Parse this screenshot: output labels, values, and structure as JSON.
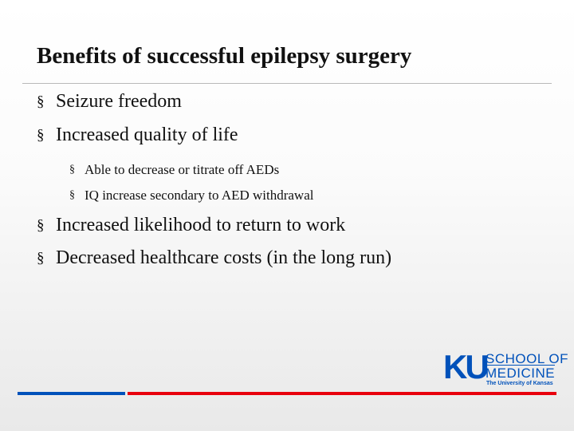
{
  "header": {
    "title": "Benefits of successful epilepsy surgery"
  },
  "bullet": "§",
  "items": [
    {
      "level": 1,
      "text": "Seizure freedom"
    },
    {
      "level": 1,
      "text": "Increased quality of life"
    },
    {
      "level": 2,
      "text": "Able to decrease or titrate off AEDs"
    },
    {
      "level": 2,
      "text": "IQ increase secondary to AED withdrawal"
    },
    {
      "level": 1,
      "text": "Increased likelihood to return to work"
    },
    {
      "level": 1,
      "text": "Decreased healthcare costs (in the long run)"
    }
  ],
  "logo": {
    "mark": "KU",
    "line1": "SCHOOL OF",
    "line2": "MEDICINE",
    "line3": "The University of Kansas"
  }
}
